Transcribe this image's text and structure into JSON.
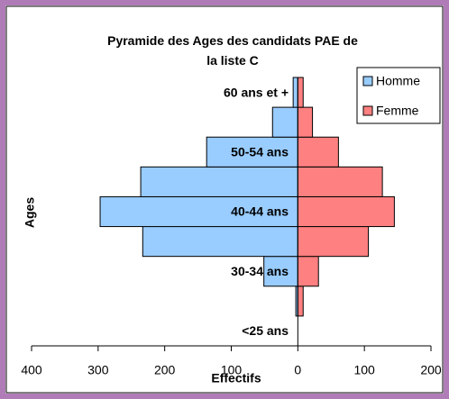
{
  "chart_data": {
    "type": "pyramid",
    "title": "Pyramide des Ages des candidats PAE de la liste C",
    "x_label": "Effectifs",
    "y_label": "Ages",
    "categories": [
      "<25 ans",
      null,
      "30-34 ans",
      null,
      "40-44 ans",
      null,
      "50-54 ans",
      null,
      "60 ans et +"
    ],
    "series": [
      {
        "name": "Homme",
        "color": "#99ccff",
        "values": [
          0,
          -3,
          -51,
          -233,
          -297,
          -236,
          -137,
          -38,
          -7
        ]
      },
      {
        "name": "Femme",
        "color": "#ff8080",
        "values": [
          0,
          8,
          31,
          106,
          145,
          127,
          61,
          22,
          8
        ]
      }
    ],
    "xlim": [
      -400,
      200
    ],
    "xticks": [
      {
        "value": -400,
        "label": "400"
      },
      {
        "value": -300,
        "label": "300"
      },
      {
        "value": -200,
        "label": "200"
      },
      {
        "value": -100,
        "label": "100"
      },
      0,
      100,
      200
    ],
    "legend": "top-right"
  }
}
